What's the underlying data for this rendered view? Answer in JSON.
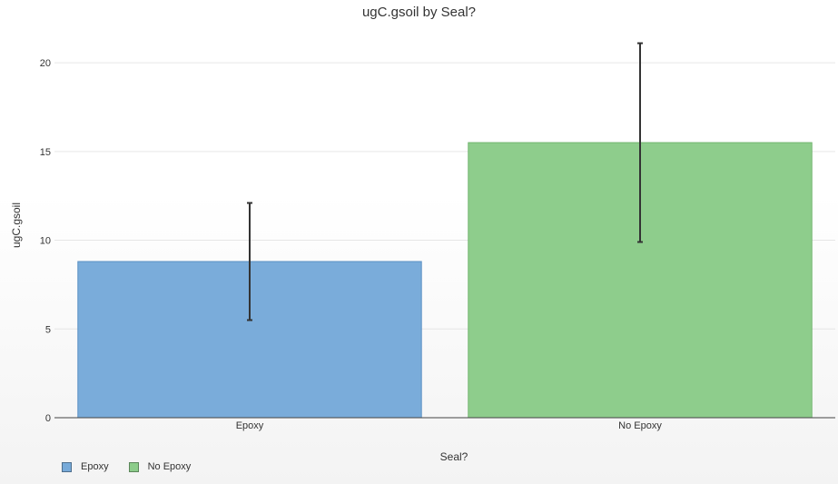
{
  "chart_data": {
    "type": "bar",
    "title": "ugC.gsoil by Seal?",
    "xlabel": "Seal?",
    "ylabel": "ugC.gsoil",
    "categories": [
      "Epoxy",
      "No Epoxy"
    ],
    "values": [
      8.8,
      15.5
    ],
    "error_low": [
      5.5,
      9.9
    ],
    "error_high": [
      12.1,
      21.1
    ],
    "ylim": [
      0,
      22
    ],
    "yticks": [
      0,
      5,
      10,
      15,
      20
    ],
    "grid": true,
    "legend": {
      "placement": "bottom-left",
      "entries": [
        "Epoxy",
        "No Epoxy"
      ]
    },
    "colors": [
      "#77aad9",
      "#8ccc8a"
    ],
    "error_bar_color": "#333333"
  }
}
